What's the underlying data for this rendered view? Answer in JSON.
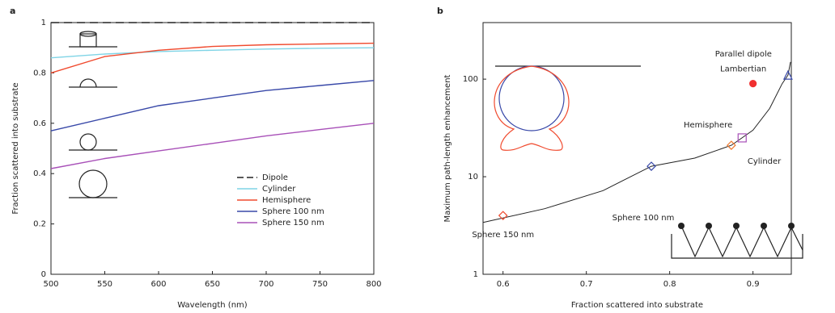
{
  "chart_data": [
    {
      "type": "line",
      "panel": "a",
      "x_label": "Wavelength (nm)",
      "y_label": "Fraction scattered into substrate",
      "x": [
        500,
        550,
        600,
        650,
        700,
        750,
        800
      ],
      "series": [
        {
          "name": "Dipole",
          "color": "#222222",
          "dash": true,
          "values": [
            1,
            1,
            1,
            1,
            1,
            1,
            1
          ]
        },
        {
          "name": "Cylinder",
          "color": "#7fd4e6",
          "values": [
            0.86,
            0.875,
            0.885,
            0.89,
            0.895,
            0.898,
            0.9
          ]
        },
        {
          "name": "Hemisphere",
          "color": "#f04a2e",
          "values": [
            0.8,
            0.865,
            0.89,
            0.905,
            0.912,
            0.915,
            0.918
          ]
        },
        {
          "name": "Sphere 100 nm",
          "color": "#3848a8",
          "values": [
            0.57,
            0.62,
            0.67,
            0.7,
            0.73,
            0.75,
            0.77
          ]
        },
        {
          "name": "Sphere 150 nm",
          "color": "#a850b8",
          "values": [
            0.42,
            0.46,
            0.49,
            0.52,
            0.55,
            0.575,
            0.6
          ]
        }
      ],
      "xlim": [
        500,
        800
      ],
      "xticks": [
        500,
        550,
        600,
        650,
        700,
        750,
        800
      ],
      "ylim": [
        0,
        1
      ],
      "yticks": [
        0,
        0.2,
        0.4,
        0.6,
        0.8,
        1
      ]
    },
    {
      "type": "scatter",
      "panel": "b",
      "log_y": true,
      "x_label": "Fraction scattered into substrate",
      "y_label": "Maximum path-length enhancement",
      "series": [
        {
          "name": "Sphere 150 nm",
          "color": "#f04a2e",
          "marker": "diamond",
          "x": [
            0.6
          ],
          "values": [
            4
          ]
        },
        {
          "name": "Sphere 100 nm",
          "color": "#3848a8",
          "marker": "diamond",
          "x": [
            0.778
          ],
          "values": [
            12.8
          ]
        },
        {
          "name": "Cylinder",
          "color": "#f07a30",
          "marker": "diamond",
          "x": [
            0.874
          ],
          "values": [
            21
          ]
        },
        {
          "name": "Hemisphere",
          "color": "#a850b8",
          "marker": "square",
          "x": [
            0.887
          ],
          "values": [
            25
          ]
        },
        {
          "name": "Lambertian",
          "color": "#f03030",
          "marker": "circle",
          "x": [
            0.9
          ],
          "values": [
            90
          ]
        },
        {
          "name": "Parallel dipole",
          "color": "#3848a8",
          "marker": "triangle",
          "x": [
            0.942
          ],
          "values": [
            110
          ]
        }
      ],
      "curve": {
        "color": "#222222",
        "x": [
          0.576,
          0.65,
          0.72,
          0.778,
          0.83,
          0.874,
          0.9,
          0.92,
          0.935,
          0.942,
          0.945
        ],
        "values": [
          3.4,
          4.7,
          7.2,
          12.8,
          15.5,
          21,
          30,
          50,
          90,
          110,
          150
        ]
      },
      "xlim": [
        0.576,
        0.946
      ],
      "xticks": [
        0.6,
        0.7,
        0.8,
        0.9
      ],
      "ylim": [
        1,
        380
      ],
      "yticks": [
        1,
        10,
        100
      ]
    }
  ]
}
